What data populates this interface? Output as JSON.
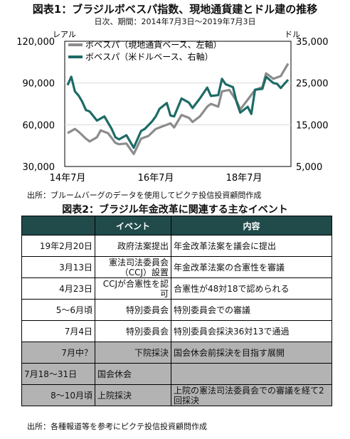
{
  "chart_data": {
    "type": "line",
    "title": "図表1：ブラジルボベスパ指数、現地通貨建とドル建の推移",
    "subtitle": "日次、期間：2014年7月3日～2019年7月3日",
    "left_axis_label": "レアル",
    "right_axis_label": "ドル",
    "left_ylim": [
      30000,
      120000
    ],
    "right_ylim": [
      5000,
      35000
    ],
    "left_ticks": [
      "120,000",
      "90,000",
      "60,000",
      "30,000"
    ],
    "right_ticks": [
      "35,000",
      "25,000",
      "15,000",
      "5,000"
    ],
    "x_ticks": [
      "14年7月",
      "16年7月",
      "18年7月"
    ],
    "grid": true,
    "legend": "top-left",
    "series": [
      {
        "name": "ボベスパ（現地通貨ベース、左軸）",
        "axis": "left",
        "color": "#8c8c8c",
        "x": [
          "2014-07",
          "2014-09",
          "2014-10",
          "2014-12",
          "2015-01",
          "2015-03",
          "2015-04",
          "2015-06",
          "2015-08",
          "2015-09",
          "2015-11",
          "2016-01",
          "2016-03",
          "2016-05",
          "2016-07",
          "2016-09",
          "2016-11",
          "2016-12",
          "2017-02",
          "2017-04",
          "2017-05",
          "2017-07",
          "2017-09",
          "2017-10",
          "2017-12",
          "2018-01",
          "2018-03",
          "2018-05",
          "2018-06",
          "2018-08",
          "2018-10",
          "2018-12",
          "2019-01",
          "2019-03",
          "2019-05",
          "2019-07"
        ],
        "values": [
          54000,
          57000,
          55000,
          50000,
          48000,
          51000,
          56000,
          54000,
          47000,
          46000,
          46500,
          39000,
          50000,
          52000,
          57000,
          59000,
          61000,
          58000,
          67000,
          65000,
          62000,
          66000,
          73000,
          75000,
          73000,
          84000,
          85000,
          77000,
          71000,
          78000,
          85000,
          87000,
          97000,
          93000,
          95000,
          104000
        ]
      },
      {
        "name": "ボベスパ（米ドルベース、右軸）",
        "axis": "right",
        "color": "#1d6b66",
        "x": [
          "2014-07",
          "2014-08",
          "2014-09",
          "2014-10",
          "2014-11",
          "2014-12",
          "2015-01",
          "2015-03",
          "2015-05",
          "2015-07",
          "2015-08",
          "2015-09",
          "2015-11",
          "2015-12",
          "2016-01",
          "2016-03",
          "2016-04",
          "2016-06",
          "2016-07",
          "2016-08",
          "2016-10",
          "2016-11",
          "2016-12",
          "2017-02",
          "2017-04",
          "2017-05",
          "2017-07",
          "2017-09",
          "2017-10",
          "2017-12",
          "2018-01",
          "2018-02",
          "2018-04",
          "2018-05",
          "2018-06",
          "2018-08",
          "2018-09",
          "2018-10",
          "2018-12",
          "2019-01",
          "2019-03",
          "2019-04",
          "2019-05",
          "2019-07"
        ],
        "values": [
          24500,
          26500,
          23000,
          22000,
          20500,
          18500,
          18200,
          16000,
          17000,
          14000,
          12000,
          11500,
          12500,
          11000,
          9500,
          13500,
          14000,
          15800,
          17000,
          18800,
          20200,
          17200,
          17000,
          21300,
          20300,
          19000,
          21300,
          23900,
          21900,
          22100,
          26000,
          24700,
          24000,
          20400,
          17900,
          19300,
          17600,
          23400,
          23600,
          26500,
          25000,
          24800,
          23800,
          25800
        ]
      }
    ]
  },
  "source1": "出所：ブルームバーグのデータを使用してピクテ投信投資顧問作成",
  "table": {
    "title": "図表2：ブラジル年金改革に関連する主なイベント",
    "headers": [
      "",
      "イベント",
      "内容"
    ],
    "rows": [
      {
        "date": "19年2月20日",
        "event": "政府法案提出",
        "content": "年金改革法案を議会に提出",
        "status": "done"
      },
      {
        "date": "3月13日",
        "event": "憲法司法委員会（CCJ）設置",
        "content": "年金改革法案の合憲性を審議",
        "status": "done"
      },
      {
        "date": "4月23日",
        "event": "CCJが合憲性を認可",
        "content": "合憲性が48対18で認められる",
        "status": "done"
      },
      {
        "date": "5～6月頃",
        "event": "特別委員会",
        "content": "特別委員会での審議",
        "status": "done"
      },
      {
        "date": "7月4日",
        "event": "特別委員会",
        "content": "特別委員会採決36対13で通過",
        "status": "done"
      },
      {
        "date": "7月中？",
        "event": "下院採決",
        "content": "国会休会前採決を目指す展開",
        "status": "pending"
      },
      {
        "date": "7月18～31日",
        "event": "国会休会",
        "content": "",
        "status": "pending"
      },
      {
        "date": "8～10月頃",
        "event": "上院採決",
        "content": "上院の憲法司法委員会での審議を経て2回採決",
        "status": "pending"
      }
    ]
  },
  "source2": "出所：各種報道等を参考にピクテ投信投資顧問作成"
}
